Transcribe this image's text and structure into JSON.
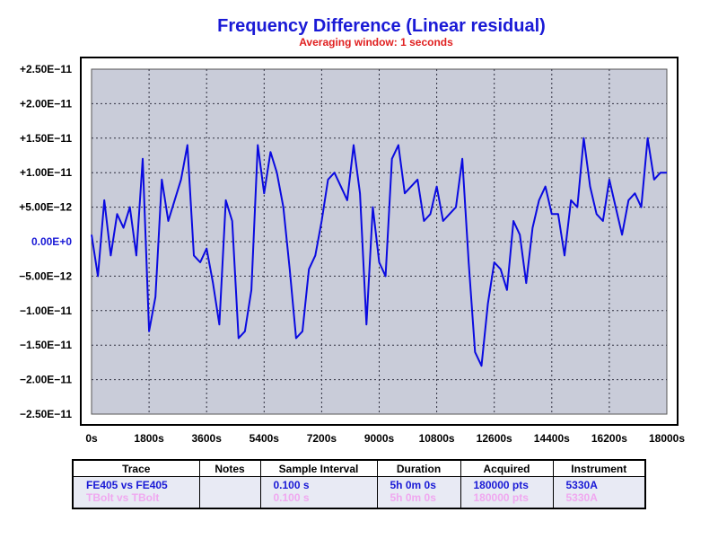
{
  "chart_data": {
    "type": "line",
    "title": "Frequency Difference (Linear residual)",
    "subtitle": "Averaging window: 1 seconds",
    "xlim": [
      0,
      18000
    ],
    "ylim": [
      -2.5e-11,
      2.5e-11
    ],
    "x_ticks": [
      "0s",
      "1800s",
      "3600s",
      "5400s",
      "7200s",
      "9000s",
      "10800s",
      "12600s",
      "14400s",
      "16200s",
      "18000s"
    ],
    "y_ticks": [
      "+2.50E−11",
      "+2.00E−11",
      "+1.50E−11",
      "+1.00E−11",
      "+5.00E−12",
      "0.00E+0",
      "−5.00E−12",
      "−1.00E−11",
      "−1.50E−11",
      "−2.00E−11",
      "−2.50E−11"
    ],
    "grid": true,
    "plot_bg": "#c9ccd9",
    "line_color": "#0a0ae0",
    "series": [
      {
        "x": [
          0,
          200,
          400,
          600,
          800,
          1000,
          1200,
          1400,
          1600,
          1800,
          2000,
          2200,
          2400,
          2600,
          2800,
          3000,
          3200,
          3400,
          3600,
          3800,
          4000,
          4200,
          4400,
          4600,
          4800,
          5000,
          5200,
          5400,
          5600,
          5800,
          6000,
          6200,
          6400,
          6600,
          6800,
          7000,
          7200,
          7400,
          7600,
          7800,
          8000,
          8200,
          8400,
          8600,
          8800,
          9000,
          9200,
          9400,
          9600,
          9800,
          10000,
          10200,
          10400,
          10600,
          10800,
          11000,
          11200,
          11400,
          11600,
          11800,
          12000,
          12200,
          12400,
          12600,
          12800,
          13000,
          13200,
          13400,
          13600,
          13800,
          14000,
          14200,
          14400,
          14600,
          14800,
          15000,
          15200,
          15400,
          15600,
          15800,
          16000,
          16200,
          16400,
          16600,
          16800,
          17000,
          17200,
          17400,
          17600,
          17800,
          18000
        ],
        "y": [
          0.1,
          -0.5,
          0.6,
          -0.2,
          0.4,
          0.2,
          0.5,
          -0.2,
          1.2,
          -1.3,
          -0.8,
          0.9,
          0.3,
          0.6,
          0.9,
          1.4,
          -0.2,
          -0.3,
          -0.1,
          -0.6,
          -1.2,
          0.6,
          0.3,
          -1.4,
          -1.3,
          -0.7,
          1.4,
          0.7,
          1.3,
          1.0,
          0.5,
          -0.4,
          -1.4,
          -1.3,
          -0.4,
          -0.2,
          0.3,
          0.9,
          1.0,
          0.8,
          0.6,
          1.4,
          0.7,
          -1.2,
          0.5,
          -0.3,
          -0.5,
          1.2,
          1.4,
          0.7,
          0.8,
          0.9,
          0.3,
          0.4,
          0.8,
          0.3,
          0.4,
          0.5,
          1.2,
          -0.3,
          -1.6,
          -1.8,
          -0.9,
          -0.3,
          -0.4,
          -0.7,
          0.3,
          0.1,
          -0.6,
          0.2,
          0.6,
          0.8,
          0.4,
          0.4,
          -0.2,
          0.6,
          0.5,
          1.5,
          0.8,
          0.4,
          0.3,
          0.9,
          0.5,
          0.1,
          0.6,
          0.7,
          0.5,
          1.5,
          0.9,
          1.0,
          1.0
        ]
      }
    ]
  },
  "legend_table": {
    "headers": [
      "Trace",
      "Notes",
      "Sample Interval",
      "Duration",
      "Acquired",
      "Instrument"
    ],
    "rows": [
      {
        "trace": "FE405 vs FE405",
        "notes": "",
        "interval": "0.100 s",
        "duration": "5h 0m 0s",
        "acquired": "180000 pts",
        "instrument": "5330A",
        "color": "#1a1ad6"
      },
      {
        "trace": "TBolt vs TBolt",
        "notes": "",
        "interval": "0.100 s",
        "duration": "5h 0m 0s",
        "acquired": "180000 pts",
        "instrument": "5330A",
        "color": "#f0a8f0"
      }
    ]
  }
}
